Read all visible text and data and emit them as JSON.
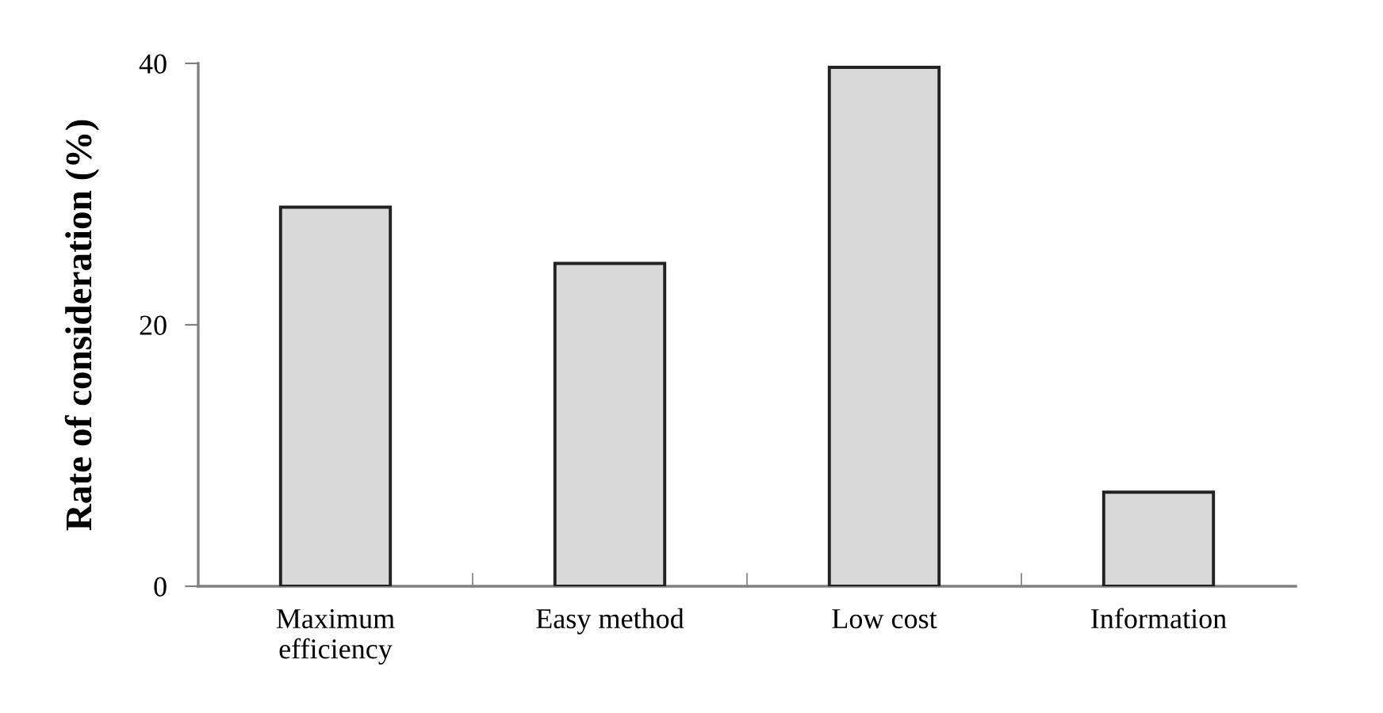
{
  "chart_data": {
    "type": "bar",
    "ylabel": "Rate of consideration (%)",
    "categories": [
      "Maximum\nefficiency",
      "Easy method",
      "Low cost",
      "Information"
    ],
    "values": [
      29,
      24.7,
      39.7,
      7.2
    ],
    "color": "#d9d9d9",
    "ylim": [
      0,
      40
    ],
    "yticks": [
      0,
      20,
      40
    ],
    "grid": false,
    "legend": false
  }
}
